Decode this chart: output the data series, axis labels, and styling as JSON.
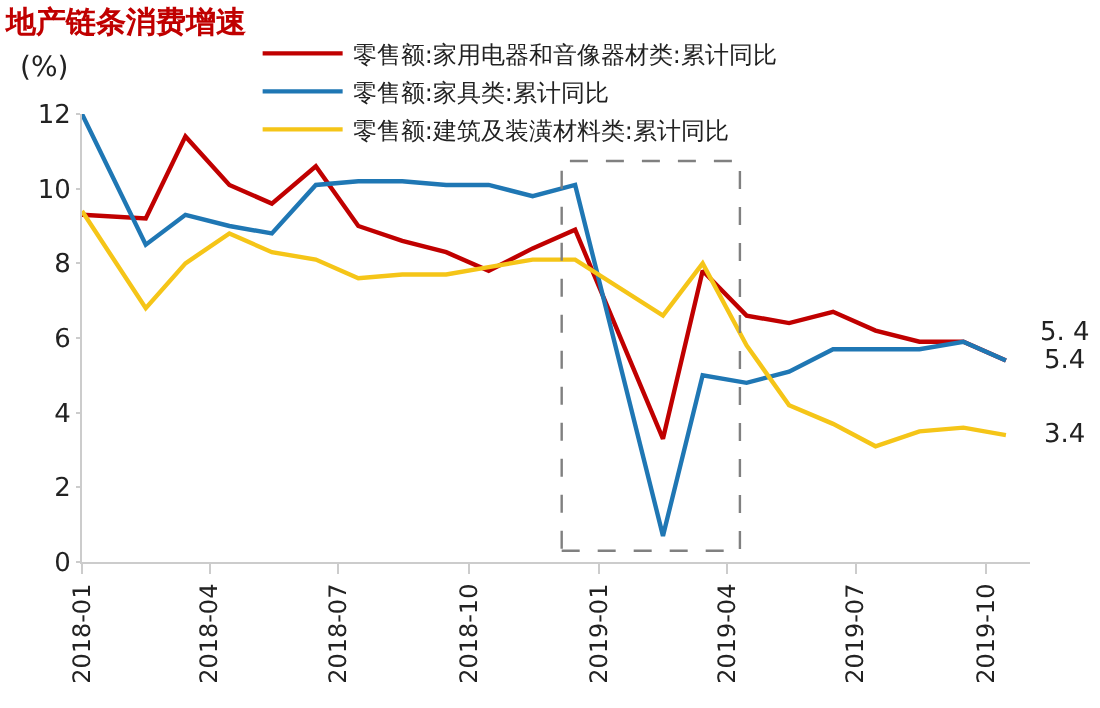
{
  "chart_data": {
    "type": "line",
    "title": "地产链条消费增速",
    "ylabel": "(%)",
    "x": [
      "2018-01-01",
      "2018-02-15",
      "2018-03-15",
      "2018-04-15",
      "2018-05-15",
      "2018-06-15",
      "2018-07-15",
      "2018-08-15",
      "2018-09-15",
      "2018-10-15",
      "2018-11-15",
      "2018-12-15",
      "2019-02-15",
      "2019-03-15",
      "2019-04-15",
      "2019-05-15",
      "2019-06-15",
      "2019-07-15",
      "2019-08-15",
      "2019-09-15",
      "2019-10-15"
    ],
    "series": [
      {
        "name": "零售额:家用电器和音像器材类:累计同比",
        "color": "#c00000",
        "values": [
          9.3,
          9.2,
          11.4,
          10.1,
          9.6,
          10.6,
          9.0,
          8.6,
          8.3,
          7.8,
          8.4,
          8.9,
          3.3,
          7.8,
          6.6,
          6.4,
          6.7,
          6.2,
          5.9,
          5.9,
          5.4
        ]
      },
      {
        "name": "零售额:家具类:累计同比",
        "color": "#1f77b4",
        "values": [
          12.0,
          8.5,
          9.3,
          9.0,
          8.8,
          10.1,
          10.2,
          10.2,
          10.1,
          10.1,
          9.8,
          10.1,
          0.7,
          5.0,
          4.8,
          5.1,
          5.7,
          5.7,
          5.7,
          5.9,
          5.4
        ]
      },
      {
        "name": "零售额:建筑及装潢材料类:累计同比",
        "color": "#f5c518",
        "values": [
          9.4,
          6.8,
          8.0,
          8.8,
          8.3,
          8.1,
          7.6,
          7.7,
          7.7,
          7.9,
          8.1,
          8.1,
          6.6,
          8.0,
          5.8,
          4.2,
          3.7,
          3.1,
          3.5,
          3.6,
          3.4
        ]
      }
    ],
    "xlim": [
      "2018-01-01",
      "2019-11-01"
    ],
    "xticks": [
      {
        "value": "2018-01-01",
        "label": "2018-01"
      },
      {
        "value": "2018-04-01",
        "label": "2018-04"
      },
      {
        "value": "2018-07-01",
        "label": "2018-07"
      },
      {
        "value": "2018-10-01",
        "label": "2018-10"
      },
      {
        "value": "2019-01-01",
        "label": "2019-01"
      },
      {
        "value": "2019-04-01",
        "label": "2019-04"
      },
      {
        "value": "2019-07-01",
        "label": "2019-07"
      },
      {
        "value": "2019-10-01",
        "label": "2019-10"
      }
    ],
    "ylim": [
      0,
      12
    ],
    "yticks": [
      0,
      2,
      4,
      6,
      8,
      10,
      12
    ],
    "annotations": [
      {
        "text": "5. 4",
        "x": "2019-10-15",
        "y": 5.4
      },
      {
        "text": "5.4",
        "x": "2019-10-15",
        "y": 5.4
      },
      {
        "text": "3.4",
        "x": "2019-10-15",
        "y": 3.4
      }
    ],
    "legend": "top left",
    "grid": false,
    "marker": "none",
    "line_style": "solid"
  }
}
